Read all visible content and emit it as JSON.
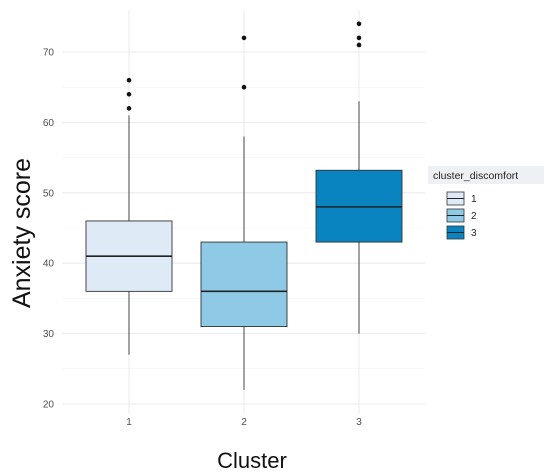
{
  "chart_data": {
    "type": "boxplot",
    "title": "",
    "xlabel": "Cluster",
    "ylabel": "Anxiety score",
    "categories": [
      "1",
      "2",
      "3"
    ],
    "ylim": [
      19,
      75
    ],
    "yticks": [
      20,
      30,
      40,
      50,
      60,
      70
    ],
    "grid": true,
    "legend": {
      "title": "cluster_discomfort",
      "position": "right",
      "entries": [
        "1",
        "2",
        "3"
      ]
    },
    "boxes": [
      {
        "category": "1",
        "whisker_low": 27,
        "q1": 36,
        "median": 41,
        "q3": 46,
        "whisker_high": 61,
        "outliers": [
          62,
          64,
          66
        ],
        "color": "#deebf7"
      },
      {
        "category": "2",
        "whisker_low": 22,
        "q1": 31,
        "median": 36,
        "q3": 43,
        "whisker_high": 58,
        "outliers": [
          65,
          72
        ],
        "color": "#8ecae6"
      },
      {
        "category": "3",
        "whisker_low": 30,
        "q1": 43,
        "median": 48,
        "q3": 53.2,
        "whisker_high": 63,
        "outliers": [
          71,
          72,
          74
        ],
        "color": "#0a84c1"
      }
    ]
  }
}
